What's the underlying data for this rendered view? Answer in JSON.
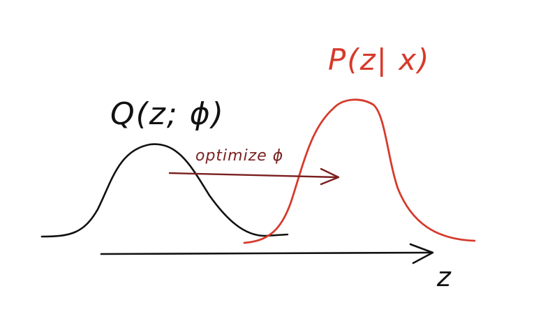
{
  "labels": {
    "q_distribution": "Q(z; ϕ)",
    "p_distribution": "P(z| x)",
    "arrow_text": "optimize ϕ",
    "axis_label": "z"
  },
  "colors": {
    "ink_black": "#111111",
    "ink_red": "#d63a2b",
    "ink_dark_red": "#7a1f1f",
    "background": "#ffffff"
  }
}
